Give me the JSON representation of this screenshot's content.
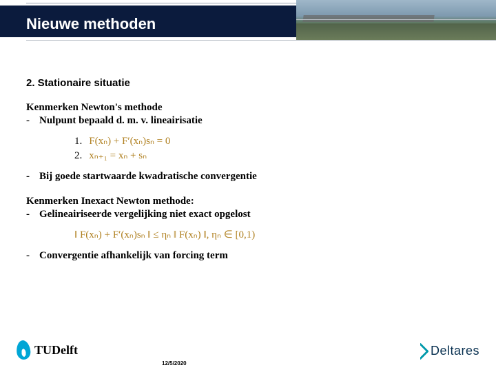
{
  "header": {
    "title": "Nieuwe methoden",
    "title_bg": "#0b1b3d",
    "title_color": "#ffffff"
  },
  "section": {
    "heading": "2. Stationaire situatie",
    "block1_intro": "Kenmerken Newton's methode",
    "block1_bullet1": "Nulpunt bepaald d. m. v. lineairisatie",
    "formula1_num": "1.",
    "formula1_text": "F(xₙ) + F′(xₙ)sₙ = 0",
    "formula2_num": "2.",
    "formula2_text": "xₙ₊₁ = xₙ + sₙ",
    "block1_bullet2": "Bij goede startwaarde kwadratische convergentie",
    "block2_intro": "Kenmerken Inexact Newton methode:",
    "block2_bullet1": "Gelineairiseerde vergelijking niet exact opgelost",
    "formula3_text": "‖ F(xₙ) + F′(xₙ)sₙ ‖ ≤ ηₙ ‖ F(xₙ) ‖,    ηₙ ∈ [0,1)",
    "block2_bullet2": "Convergentie afhankelijk van forcing term"
  },
  "footer": {
    "tudelft_text": "TUDelft",
    "deltares_text": "Deltares",
    "date": "12/5/2020"
  },
  "colors": {
    "formula_color": "#b08020",
    "text_color": "#000000",
    "background": "#ffffff"
  }
}
